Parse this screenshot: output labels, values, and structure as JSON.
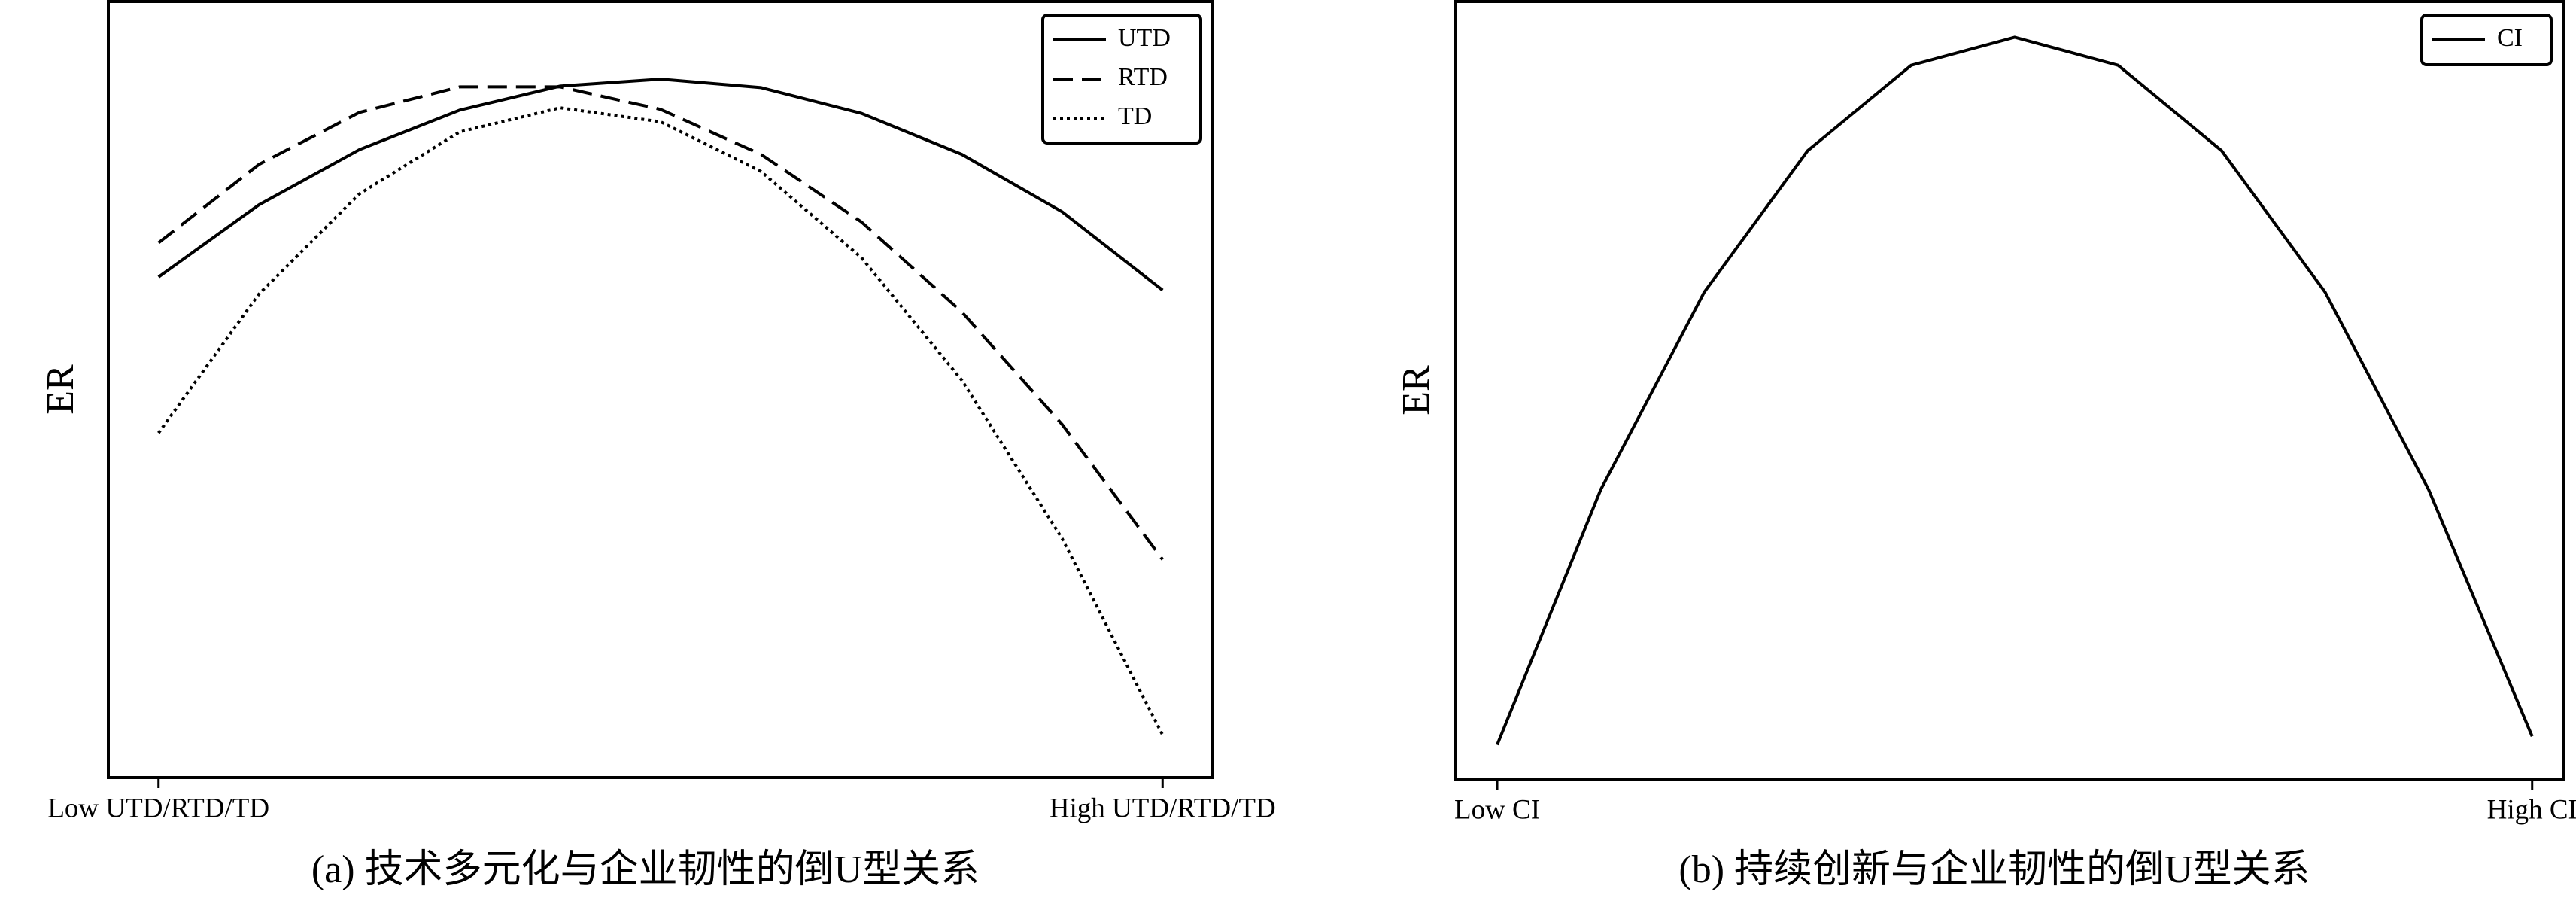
{
  "chart_data": [
    {
      "type": "line",
      "title": "(a) 技术多元化与企业韧性的倒U型关系",
      "ylabel": "ER",
      "x": [
        0,
        0.1,
        0.2,
        0.3,
        0.4,
        0.5,
        0.6,
        0.7,
        0.8,
        0.9,
        1
      ],
      "xlim": [
        -0.05,
        1.05
      ],
      "ylim": [
        0,
        100
      ],
      "xticks": [
        {
          "value": 0,
          "label": "Low UTD/RTD/TD"
        },
        {
          "value": 1,
          "label": "High UTD/RTD/TD"
        }
      ],
      "legend": "upper right",
      "series": [
        {
          "name": "UTD",
          "color": "#000000",
          "style": "solid",
          "values": [
            64.5,
            73.8,
            80.9,
            86.0,
            89.1,
            90.0,
            88.9,
            85.6,
            80.3,
            72.9,
            62.8
          ]
        },
        {
          "name": "RTD",
          "color": "#000000",
          "style": "dashed",
          "values": [
            68.9,
            79.0,
            85.7,
            89.0,
            89.0,
            86.1,
            80.3,
            71.6,
            60.0,
            45.5,
            28.1
          ]
        },
        {
          "name": "TD",
          "color": "#000000",
          "style": "dotted",
          "values": [
            44.4,
            62.3,
            75.2,
            83.2,
            86.3,
            84.5,
            78.1,
            67.0,
            51.2,
            30.8,
            5.5
          ]
        }
      ]
    },
    {
      "type": "line",
      "title": "(b) 持续创新与企业韧性的倒U型关系",
      "ylabel": "ER",
      "x": [
        0,
        0.1,
        0.2,
        0.3,
        0.4,
        0.5,
        0.6,
        0.7,
        0.8,
        0.9,
        1
      ],
      "xlim": [
        -0.04,
        1.03
      ],
      "ylim": [
        0,
        100
      ],
      "xticks": [
        {
          "value": 0,
          "label": "Low CI"
        },
        {
          "value": 1,
          "label": "High CI"
        }
      ],
      "legend": "upper right",
      "series": [
        {
          "name": "CI",
          "color": "#000000",
          "style": "solid",
          "values": [
            4.4,
            37.2,
            62.6,
            80.8,
            91.8,
            95.4,
            91.8,
            80.8,
            62.6,
            37.2,
            5.5
          ]
        }
      ]
    }
  ]
}
